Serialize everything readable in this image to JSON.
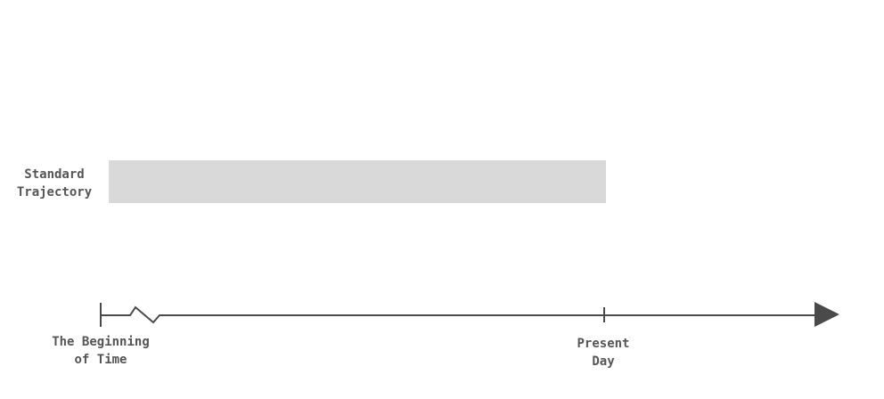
{
  "diagram": {
    "row": {
      "label_line1": "Standard",
      "label_line2": "Trajectory",
      "bar_color": "#d9d9d9"
    },
    "axis": {
      "line_color": "#4a4a4a",
      "start_label_line1": "The Beginning",
      "start_label_line2": "of Time",
      "present_label_line1": "Present",
      "present_label_line2": "Day",
      "break_marker": "axis-break-icon",
      "end_marker": "arrowhead-icon"
    }
  }
}
